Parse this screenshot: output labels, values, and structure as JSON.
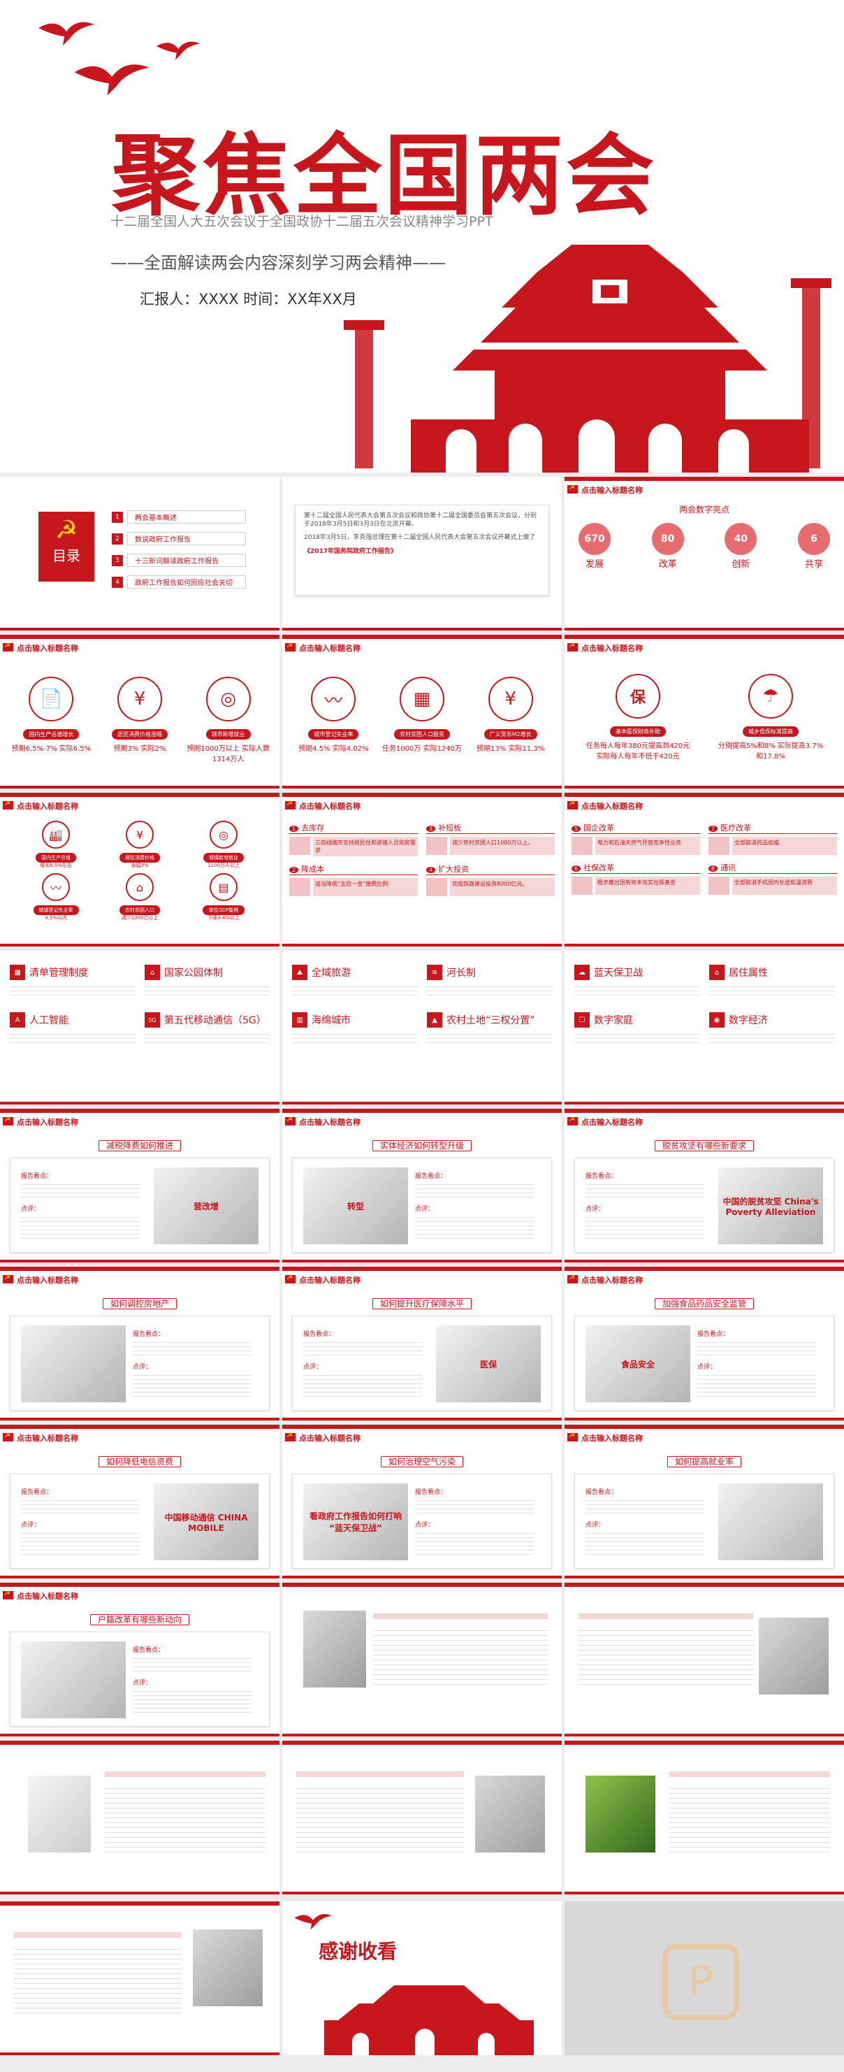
{
  "cover": {
    "title": "聚焦全国两会",
    "subtitle": "十二届全国人大五次会议于全国政协十二届五次会议精神学习PPT",
    "tagline": "——全面解读两会内容深刻学习两会精神——",
    "reporter": "汇报人：XXXX    时间：XX年XX月"
  },
  "header_text": "点击输入标题名称",
  "toc": {
    "label": "目录",
    "items": [
      {
        "num": "1",
        "text": "两会基本概述"
      },
      {
        "num": "2",
        "text": "数说政府工作报告"
      },
      {
        "num": "3",
        "text": "十三新词解读政府工作报告"
      },
      {
        "num": "4",
        "text": "政府工作报告如何回应社会关切"
      }
    ]
  },
  "intro": {
    "text1": "第十二届全国人民代表大会第五次会议和政协第十二届全国委员会第五次会议，分别于2018年3月5日和3月3日在北京开幕。",
    "text2": "2018年3月5日，李克强总理在第十二届全国人民代表大会第五次会议开幕式上做了",
    "highlight": "《2017年国务院政府工作报告》"
  },
  "keywords": {
    "title": "两会数字亮点",
    "items": [
      {
        "num": "670",
        "label": "发展"
      },
      {
        "num": "80",
        "label": "改革"
      },
      {
        "num": "40",
        "label": "创新"
      },
      {
        "num": "6",
        "label": "共享"
      }
    ]
  },
  "stats_a": [
    {
      "icon": "📄",
      "pill": "国内生产总值增长",
      "stat": "预期6.5%-7% 实际6.5%"
    },
    {
      "icon": "¥",
      "pill": "居民消费价格涨幅",
      "stat": "预期3% 实际2%"
    },
    {
      "icon": "◎",
      "pill": "城市新增就业",
      "stat": "预期1000万以上 实际人数1314万人"
    }
  ],
  "stats_b": [
    {
      "icon": "〰",
      "pill": "城市登记失业率",
      "stat": "预期4.5% 实际4.02%"
    },
    {
      "icon": "▦",
      "pill": "农村贫困人口脱贫",
      "stat": "任务1000万 实际1240万"
    },
    {
      "icon": "¥",
      "pill": "广义货币M2增长",
      "stat": "预期13% 实际11.3%"
    }
  ],
  "stats_c": [
    {
      "icon": "保",
      "pill": "基本医保财政补助",
      "stat": "任务每人每年380元提高到420元 实际每人每年不低于420元"
    },
    {
      "icon": "☂",
      "pill": "城乡低保标准提高",
      "stat": "分别提高5%和8% 实际提高3.7%和17.8%"
    }
  ],
  "stats_d": [
    {
      "icon": "🏭",
      "pill": "国内生产总值",
      "stat": "增长6.5%左右"
    },
    {
      "icon": "¥",
      "pill": "居民消费价格",
      "stat": "涨幅3%"
    },
    {
      "icon": "◎",
      "pill": "城镇新增就业",
      "stat": "1100万人以上"
    },
    {
      "icon": "〰",
      "pill": "城镇登记失业率",
      "stat": "4.5%以内"
    },
    {
      "icon": "⌂",
      "pill": "农村贫困人口",
      "stat": "减少1000万以上"
    },
    {
      "icon": "▤",
      "pill": "单位GDP能耗",
      "stat": "下降3.4%以上"
    }
  ],
  "tasks_a": [
    {
      "num": "1",
      "title": "去库存",
      "text": "三四线城市支持居民住和进城人员购房需求"
    },
    {
      "num": "3",
      "title": "补短板",
      "text": "减少农村贫困人口1000万以上。"
    },
    {
      "num": "2",
      "title": "降成本",
      "text": "适当降低“五险一金”缴费比例"
    },
    {
      "num": "4",
      "title": "扩大投资",
      "text": "完成铁路建设投资8000亿元。"
    }
  ],
  "tasks_b": [
    {
      "num": "5",
      "title": "国企改革",
      "text": "电力和石油天然气开放竞争性业务"
    },
    {
      "num": "7",
      "title": "医疗改革",
      "text": "全部取消药品加成"
    },
    {
      "num": "6",
      "title": "社保改革",
      "text": "稳步推出国有资本充实社保基金"
    },
    {
      "num": "8",
      "title": "通讯",
      "text": "全部取消手机国内长途和漫游费"
    }
  ],
  "terms_a": [
    {
      "icon": "▦",
      "title": "清单管理制度"
    },
    {
      "icon": "⌂",
      "title": "国家公园体制"
    },
    {
      "icon": "A",
      "title": "人工智能"
    },
    {
      "icon": "5G",
      "title": "第五代移动通信（5G）"
    }
  ],
  "terms_b": [
    {
      "icon": "⛰",
      "title": "全域旅游"
    },
    {
      "icon": "≋",
      "title": "河长制"
    },
    {
      "icon": "▥",
      "title": "海绵城市"
    },
    {
      "icon": "▲",
      "title": "农村土地“三权分置”"
    }
  ],
  "terms_c": [
    {
      "icon": "☁",
      "title": "蓝天保卫战"
    },
    {
      "icon": "⌂",
      "title": "居住属性"
    },
    {
      "icon": "☐",
      "title": "数字家庭"
    },
    {
      "icon": "◉",
      "title": "数字经济"
    }
  ],
  "topics": [
    {
      "title": "减税降费如何推进",
      "label": "报告看点：",
      "comment": "点评：",
      "img": "营改增"
    },
    {
      "title": "实体经济如何转型升级",
      "label": "报告看点：",
      "comment": "点评：",
      "img": "转型"
    },
    {
      "title": "脱贫攻坚有哪些新要求",
      "label": "报告看点：",
      "comment": "点评：",
      "img": "中国的脱贫攻坚 China's Poverty Alleviation"
    },
    {
      "title": "如何调控房地产",
      "label": "报告看点：",
      "comment": "点评：",
      "img": ""
    },
    {
      "title": "如何提升医疗保障水平",
      "label": "报告看点：",
      "comment": "点评：",
      "img": "医保"
    },
    {
      "title": "加强食品药品安全监管",
      "label": "报告看点：",
      "comment": "点评：",
      "img": "食品安全"
    },
    {
      "title": "如何降低电信资费",
      "label": "报告看点：",
      "comment": "点评：",
      "img": "中国移动通信 CHINA MOBILE"
    },
    {
      "title": "如何治理空气污染",
      "label": "报告看点：",
      "comment": "点评：",
      "img": "看政府工作报告如何打响 “蓝天保卫战”"
    },
    {
      "title": "如何提高就业率",
      "label": "报告看点：",
      "comment": "点评：",
      "img": ""
    },
    {
      "title": "户籍改革有哪些新动向",
      "label": "报告看点：",
      "comment": "点评：",
      "img": ""
    }
  ],
  "closing": {
    "title": "感谢收看"
  },
  "watermark": "P"
}
